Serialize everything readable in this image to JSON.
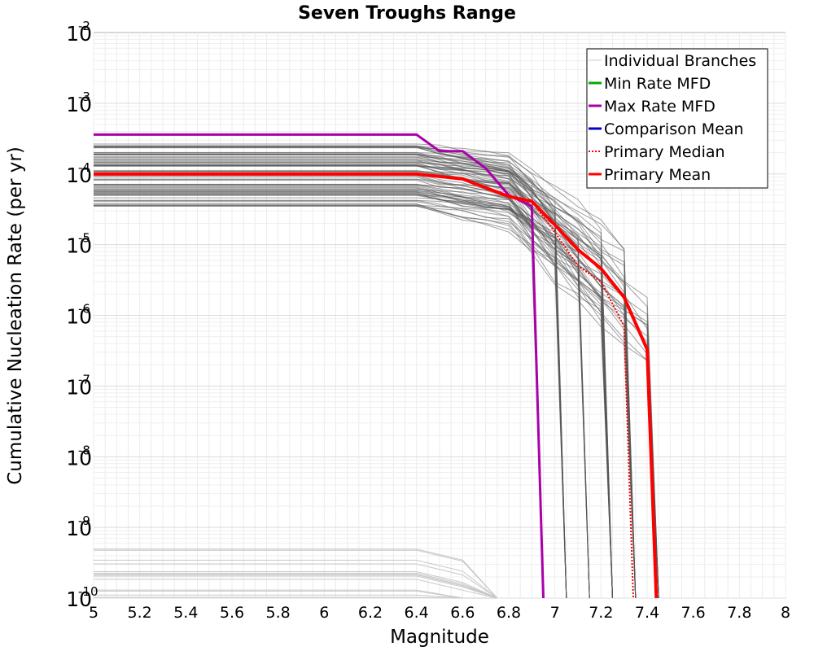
{
  "chart_data": {
    "type": "line",
    "title": "Seven Troughs Range",
    "xlabel": "Magnitude",
    "ylabel": "Cumulative Nucleation Rate (per yr)",
    "xlim": [
      5,
      8
    ],
    "ylim": [
      1e-10,
      0.01
    ],
    "yscale": "log",
    "grid": true,
    "legend_position": "top-right",
    "x_ticks": [
      "5",
      "5.2",
      "5.4",
      "5.6",
      "5.8",
      "6",
      "6.2",
      "6.4",
      "6.6",
      "6.8",
      "7",
      "7.2",
      "7.4",
      "7.6",
      "7.8",
      "8"
    ],
    "y_ticks": [
      {
        "base": "10",
        "exp": "-10",
        "value": 1e-10
      },
      {
        "base": "10",
        "exp": "-9",
        "value": 1e-09
      },
      {
        "base": "10",
        "exp": "-8",
        "value": 1e-08
      },
      {
        "base": "10",
        "exp": "-7",
        "value": 1e-07
      },
      {
        "base": "10",
        "exp": "-6",
        "value": 1e-06
      },
      {
        "base": "10",
        "exp": "-5",
        "value": 1e-05
      },
      {
        "base": "10",
        "exp": "-4",
        "value": 0.0001
      },
      {
        "base": "10",
        "exp": "-3",
        "value": 0.001
      },
      {
        "base": "10",
        "exp": "-2",
        "value": 0.01
      }
    ],
    "legend": [
      {
        "name": "Individual Branches",
        "color": "#c8c8c8",
        "style": "solid"
      },
      {
        "name": "Min Rate MFD",
        "color": "#00aa00",
        "style": "solid"
      },
      {
        "name": "Max Rate MFD",
        "color": "#aa00aa",
        "style": "solid"
      },
      {
        "name": "Comparison Mean",
        "color": "#0000cc",
        "style": "solid"
      },
      {
        "name": " Primary Median",
        "color": "#ff0000",
        "style": "dotted"
      },
      {
        "name": "Primary Mean",
        "color": "#ff0000",
        "style": "solid"
      }
    ],
    "series": [
      {
        "name": "Max Rate MFD",
        "color": "#aa00aa",
        "x": [
          5.0,
          6.4,
          6.5,
          6.6,
          6.7,
          6.8,
          6.9,
          6.95
        ],
        "y": [
          0.00036,
          0.00036,
          0.00021,
          0.00021,
          0.00012,
          5e-05,
          3.5e-05,
          1e-10
        ]
      },
      {
        "name": "Primary Mean",
        "color": "#ff0000",
        "x": [
          5.0,
          6.4,
          6.6,
          6.8,
          6.9,
          7.0,
          7.1,
          7.2,
          7.3,
          7.4,
          7.44
        ],
        "y": [
          0.0001,
          0.0001,
          8.5e-05,
          4.8e-05,
          4.1e-05,
          1.9e-05,
          8.5e-06,
          4.6e-06,
          1.8e-06,
          3.3e-07,
          1e-10
        ]
      },
      {
        "name": "Primary Median",
        "color": "#ff0000",
        "x": [
          5.0,
          6.4,
          6.6,
          6.8,
          6.9,
          7.0,
          7.1,
          7.2,
          7.3,
          7.34
        ],
        "y": [
          0.0001,
          0.0001,
          8.5e-05,
          4.8e-05,
          4.1e-05,
          1.5e-05,
          5e-06,
          3e-06,
          7e-07,
          1e-10
        ]
      }
    ],
    "branches_upper": {
      "name": "Individual Branches",
      "color": "#555555",
      "count": 80,
      "y_range_at_5": [
        3.5e-05,
        0.00028
      ],
      "cutoff_magnitudes": [
        6.95,
        7.05,
        7.15,
        7.25,
        7.35,
        7.45
      ]
    },
    "branches_lower": {
      "name": "Individual Branches",
      "color": "#c8c8c8",
      "count": 14,
      "y_range_at_5": [
        1e-10,
        7e-10
      ]
    }
  }
}
